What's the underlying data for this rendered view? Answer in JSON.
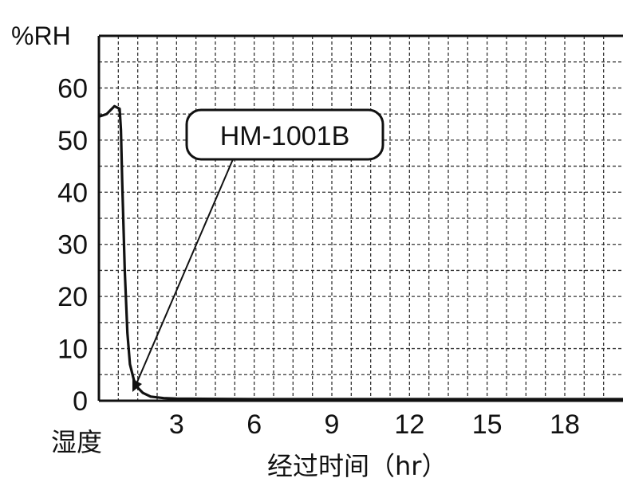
{
  "chart_data": {
    "type": "line",
    "title": "",
    "ylabel": "%RH",
    "y_side_label": "湿度",
    "xlabel": "经过时间（hr）",
    "ylim": [
      0,
      70
    ],
    "xlim": [
      0,
      20.25
    ],
    "y_ticks": [
      0,
      10,
      20,
      30,
      40,
      50,
      60
    ],
    "y_tick_labels": [
      "0",
      "10",
      "20",
      "30",
      "40",
      "50",
      "60"
    ],
    "x_ticks": [
      3,
      6,
      9,
      12,
      15,
      18
    ],
    "x_tick_labels": [
      "3",
      "6",
      "9",
      "12",
      "15",
      "18"
    ],
    "grid": true,
    "annotation": "HM-1001B",
    "series": [
      {
        "name": "",
        "x": [
          0,
          0.3,
          0.6,
          0.8,
          0.85,
          0.9,
          1.0,
          1.1,
          1.2,
          1.35,
          1.5,
          1.7,
          2.0,
          2.5,
          3,
          6,
          9,
          12,
          15,
          18,
          20.25
        ],
        "y": [
          54.5,
          55,
          56.5,
          56,
          52,
          42,
          25,
          13,
          7,
          4,
          2.5,
          1.5,
          0.8,
          0.5,
          0.4,
          0.3,
          0.3,
          0.3,
          0.3,
          0.3,
          0.3
        ]
      }
    ]
  }
}
